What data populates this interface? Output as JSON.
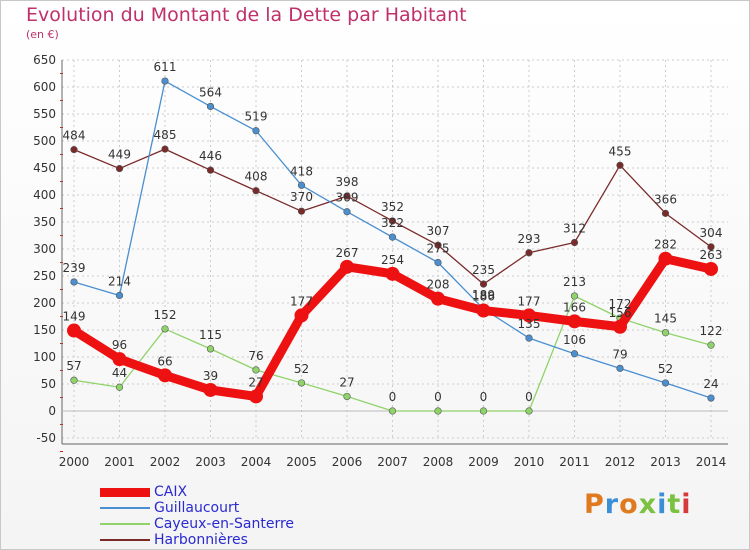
{
  "title": "Evolution du Montant de la Dette par Habitant",
  "subtitle": "(en €)",
  "logo": {
    "text": "Proxiti",
    "colors": [
      "#e07a1e",
      "#3a8fd6",
      "#e07a1e",
      "#7cc242",
      "#3a8fd6",
      "#7cc242",
      "#d63a3a"
    ]
  },
  "chart_data": {
    "type": "line",
    "x": [
      "2000",
      "2001",
      "2002",
      "2003",
      "2004",
      "2005",
      "2006",
      "2007",
      "2008",
      "2009",
      "2010",
      "2011",
      "2012",
      "2013",
      "2014"
    ],
    "ylim": [
      -50,
      650
    ],
    "yticks": [
      "-50",
      "0",
      "50",
      "100",
      "150",
      "200",
      "250",
      "300",
      "350",
      "400",
      "450",
      "500",
      "550",
      "600",
      "650"
    ],
    "grid": true,
    "legend": "bottom-left",
    "series": [
      {
        "name": "Harbonnières",
        "color": "#7b2a2a",
        "values": [
          484,
          449,
          485,
          446,
          408,
          370,
          398,
          352,
          307,
          235,
          293,
          312,
          455,
          366,
          304
        ],
        "labels": [
          "484",
          "449",
          "485",
          "446",
          "408",
          "370",
          "398",
          "352",
          "307",
          "235",
          "293",
          "312",
          "455",
          "366",
          "304"
        ]
      },
      {
        "name": "Cayeux-en-Santerre",
        "color": "#8fd36a",
        "values": [
          57,
          44,
          152,
          115,
          76,
          52,
          27,
          0,
          0,
          0,
          0,
          213,
          172,
          145,
          122
        ],
        "labels": [
          "57",
          "44",
          "152",
          "115",
          "76",
          "52",
          "27",
          "0",
          "0",
          "0",
          "0",
          "213",
          "172",
          "145",
          "122"
        ]
      },
      {
        "name": "Guillaucourt",
        "color": "#4a8fd0",
        "values": [
          239,
          214,
          611,
          564,
          519,
          418,
          369,
          322,
          275,
          189,
          135,
          106,
          79,
          52,
          24
        ],
        "labels": [
          "239",
          "214",
          "611",
          "564",
          "519",
          "418",
          "369",
          "322",
          "275",
          "189",
          "135",
          "106",
          "79",
          "52",
          "24"
        ]
      },
      {
        "name": "CAIX",
        "color": "#ee1111",
        "values": [
          149,
          96,
          66,
          39,
          27,
          177,
          267,
          254,
          208,
          186,
          177,
          166,
          156,
          282,
          263
        ],
        "labels": [
          "149",
          "96",
          "66",
          "39",
          "27",
          "177",
          "267",
          "254",
          "208",
          "186",
          "177",
          "166",
          "156",
          "282",
          "263"
        ]
      }
    ]
  }
}
